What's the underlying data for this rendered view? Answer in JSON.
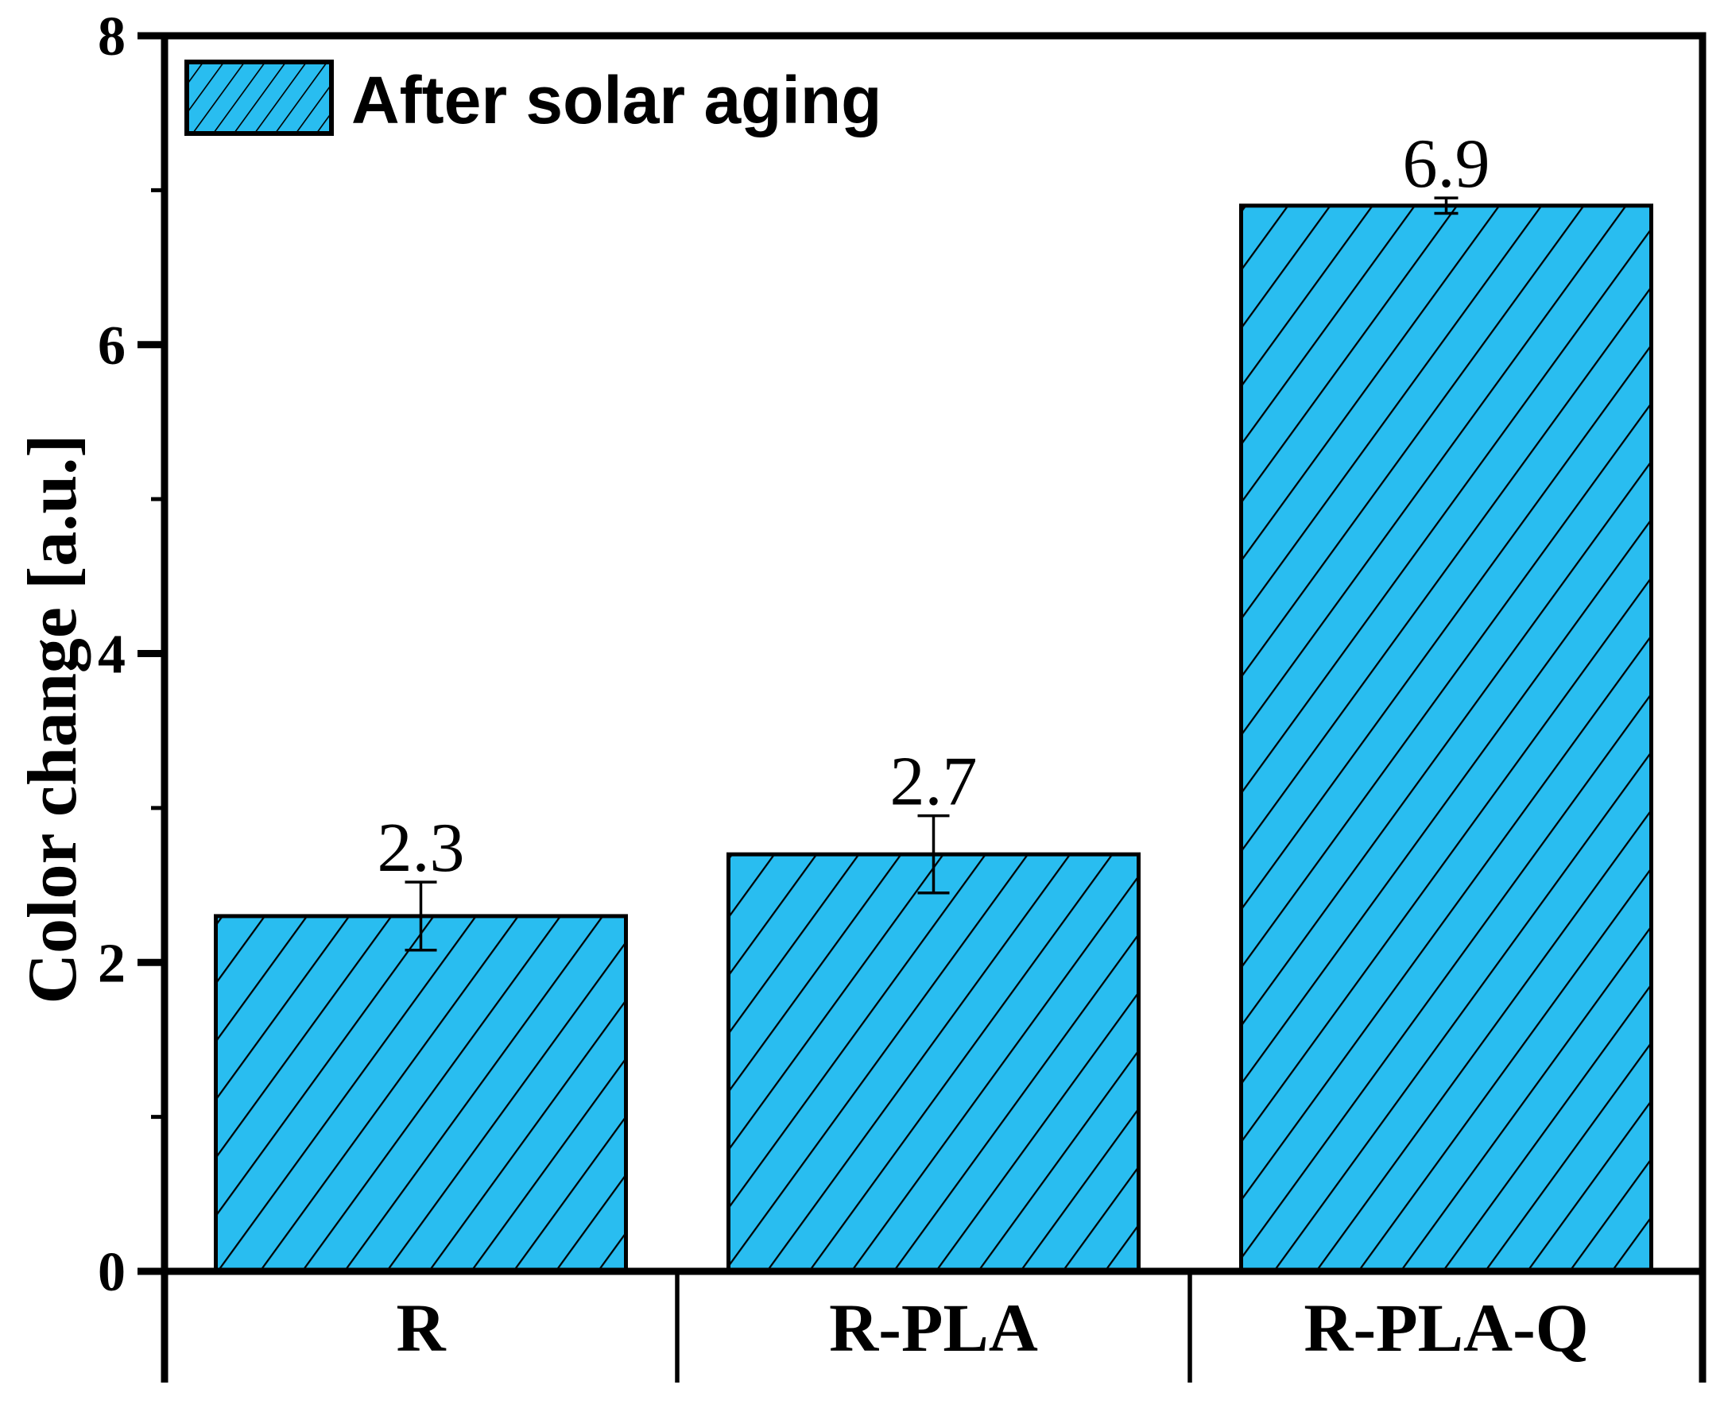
{
  "chart_data": {
    "type": "bar",
    "title": "",
    "categories": [
      "R",
      "R-PLA",
      "R-PLA-Q"
    ],
    "series": [
      {
        "name": "After solar aging",
        "values": [
          2.3,
          2.7,
          6.9
        ],
        "errors": [
          0.22,
          0.25,
          0.05
        ]
      }
    ],
    "bar_labels": [
      "2.3",
      "2.7",
      "6.9"
    ],
    "xlabel": "",
    "ylabel": "Color change [a.u.]",
    "ylim": [
      0,
      8
    ],
    "yticks": [
      0,
      2,
      4,
      6,
      8
    ],
    "yticks_minor": [
      1,
      3,
      5,
      7
    ],
    "grid": false,
    "legend_position": "top-left",
    "bar_color": "#29BDF0",
    "hatch_color": "#000000",
    "hatch_style": "diagonal-forward"
  },
  "legend": {
    "label": "After solar aging"
  },
  "axis": {
    "ylabel": "Color change [a.u.]"
  }
}
